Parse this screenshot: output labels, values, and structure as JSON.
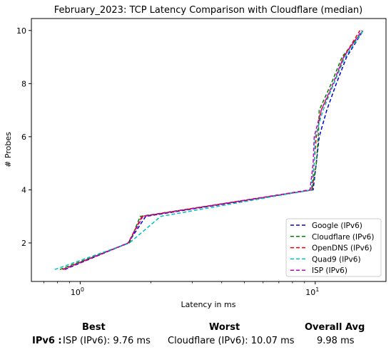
{
  "chart_data": {
    "type": "line",
    "title": "February_2023: TCP Latency Comparison with Cloudflare (median)",
    "xlabel": "Latency in ms",
    "ylabel": "# Probes",
    "x_scale": "log",
    "xlim": [
      0.62,
      20
    ],
    "ylim": [
      0.55,
      10.45
    ],
    "x_ticks": [
      1,
      10
    ],
    "x_tick_labels": [
      "10^0",
      "10^1"
    ],
    "y_ticks": [
      2,
      4,
      6,
      8,
      10
    ],
    "grid": false,
    "legend_position": "lower right",
    "series": [
      {
        "name": "Google (IPv6)",
        "color": "#0000cc",
        "style": "dashed",
        "points": [
          [
            0.86,
            1
          ],
          [
            1.6,
            2
          ],
          [
            1.9,
            3
          ],
          [
            9.8,
            4
          ],
          [
            10.1,
            5
          ],
          [
            10.4,
            6
          ],
          [
            11.2,
            7
          ],
          [
            12.3,
            8
          ],
          [
            13.6,
            9
          ],
          [
            16.0,
            10
          ]
        ]
      },
      {
        "name": "Cloudflare (IPv6)",
        "color": "#008000",
        "style": "dashed",
        "points": [
          [
            0.82,
            1
          ],
          [
            1.62,
            2
          ],
          [
            1.8,
            3
          ],
          [
            9.7,
            4
          ],
          [
            10.1,
            5
          ],
          [
            10.3,
            6
          ],
          [
            10.4,
            7
          ],
          [
            11.7,
            8
          ],
          [
            13.0,
            9
          ],
          [
            16.0,
            10
          ]
        ]
      },
      {
        "name": "OpenDNS (IPv6)",
        "color": "#ee0000",
        "style": "dashed",
        "points": [
          [
            0.84,
            1
          ],
          [
            1.6,
            2
          ],
          [
            1.83,
            3
          ],
          [
            9.7,
            4
          ],
          [
            9.9,
            5
          ],
          [
            10.1,
            6
          ],
          [
            10.6,
            7
          ],
          [
            12.0,
            8
          ],
          [
            13.2,
            9
          ],
          [
            15.5,
            10
          ]
        ]
      },
      {
        "name": "Quad9 (IPv6)",
        "color": "#00bfbf",
        "style": "dashed",
        "points": [
          [
            0.78,
            1
          ],
          [
            1.62,
            2
          ],
          [
            2.2,
            3
          ],
          [
            9.6,
            4
          ],
          [
            9.9,
            5
          ],
          [
            10.0,
            6
          ],
          [
            10.8,
            7
          ],
          [
            12.0,
            8
          ],
          [
            13.4,
            9
          ],
          [
            16.0,
            10
          ]
        ]
      },
      {
        "name": "ISP (IPv6)",
        "color": "#bf00bf",
        "style": "dashed",
        "points": [
          [
            0.85,
            1
          ],
          [
            1.6,
            2
          ],
          [
            1.85,
            3
          ],
          [
            9.5,
            4
          ],
          [
            9.8,
            5
          ],
          [
            9.9,
            6
          ],
          [
            10.6,
            7
          ],
          [
            11.9,
            8
          ],
          [
            13.2,
            9
          ],
          [
            15.8,
            10
          ]
        ]
      }
    ]
  },
  "summary": {
    "best_header": "Best",
    "worst_header": "Worst",
    "avg_header": "Overall Avg",
    "row_label": "IPv6 :",
    "best_value": "ISP (IPv6): 9.76 ms",
    "worst_value": "Cloudflare (IPv6): 10.07 ms",
    "avg_value": "9.98 ms"
  }
}
